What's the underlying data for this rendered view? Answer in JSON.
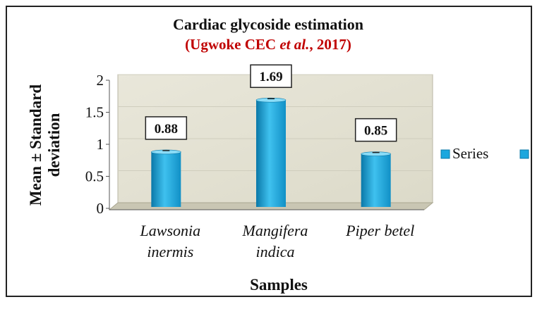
{
  "chart_data": {
    "type": "bar",
    "title": "Cardiac glycoside estimation",
    "subtitle_parts": [
      "(Ugwoke CEC ",
      "et al.",
      ", 2017)"
    ],
    "xlabel": "Samples",
    "ylabel_lines": [
      "Mean ± Standard",
      "deviation"
    ],
    "categories": [
      [
        "Lawsonia",
        "inermis"
      ],
      [
        "Mangifera",
        "indica"
      ],
      [
        "Piper betel"
      ]
    ],
    "values": [
      0.88,
      1.69,
      0.85
    ],
    "data_labels": [
      "0.88",
      "1.69",
      "0.85"
    ],
    "yticks": [
      "0",
      "0.5",
      "1",
      "1.5",
      "2"
    ],
    "ylim": [
      0,
      2
    ],
    "legend": [
      "Series"
    ],
    "legend_position": "right",
    "colors": {
      "bar": "#1ba7de",
      "bar_dark": "#0a78a8",
      "bar_light": "#7fd4f4",
      "plot_bg": "#e3e1d3"
    }
  }
}
